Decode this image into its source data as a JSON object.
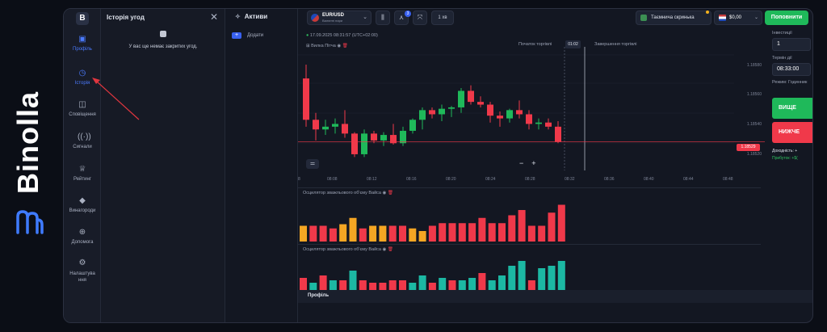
{
  "brand": {
    "name": "Binolla"
  },
  "nav": {
    "items": [
      {
        "label": "Профіль",
        "icon": "briefcase-icon"
      },
      {
        "label": "Історія",
        "icon": "history-icon"
      },
      {
        "label": "Сповіщення",
        "icon": "notification-icon"
      },
      {
        "label": "Сигнали",
        "icon": "signal-icon"
      },
      {
        "label": "Рейтинг",
        "icon": "trophy-icon"
      },
      {
        "label": "Винагороди",
        "icon": "diamond-icon"
      },
      {
        "label": "Допомога",
        "icon": "help-globe-icon"
      },
      {
        "label": "Налаштування",
        "icon": "gear-icon"
      }
    ]
  },
  "history": {
    "title": "Історія угод",
    "empty": "У вас ще немає закритих угод."
  },
  "assets": {
    "title": "Активи",
    "add": "Додати"
  },
  "topbar": {
    "pair": "EUR/USD",
    "pair_sub": "Валютні пари",
    "indicator_badge": "3",
    "timeframe": "1 хв",
    "secret": "Таємнича скринька",
    "balance": "$0,00",
    "deposit": "Поповнити"
  },
  "chart": {
    "datetime": "17.09.2025 08:31:57 (UTC+02:00)",
    "indicator": "Вилка Пітча",
    "start_label": "Початок торгівлі",
    "end_label": "Завершення торгівлі",
    "time_chip": "01:02",
    "current_price": "1.18529",
    "price_ticks": [
      "1.18580",
      "1.18560",
      "1.18540",
      "1.18520"
    ],
    "time_ticks": [
      "08:08",
      "08:12",
      "08:16",
      "08:20",
      "08:24",
      "08:28",
      "08:32",
      "08:36",
      "08:40",
      "08:44",
      "08:48"
    ],
    "first_tick": "8",
    "panel1_title": "Осцилятор зважльового об'єму Вайса",
    "panel2_title": "Осцилятор зважльового об'єму Вайса"
  },
  "trade": {
    "investment_label": "Інвестиції",
    "investment_value": "1",
    "term_label": "Термін дії",
    "term_value": "08:33:00",
    "mode_label": "Режим: Годинник",
    "up_label": "ВИЩЕ",
    "down_label": "НИЖЧЕ",
    "income_label": "Доходність: +",
    "profit_label": "Прибуток: +$("
  },
  "profile_bar": "Профіль",
  "chart_data": {
    "type": "candlestick",
    "candles": [
      {
        "o": 1.18575,
        "h": 1.18585,
        "l": 1.1854,
        "c": 1.18545
      },
      {
        "o": 1.18545,
        "h": 1.1855,
        "l": 1.1853,
        "c": 1.18538
      },
      {
        "o": 1.18538,
        "h": 1.18545,
        "l": 1.18534,
        "c": 1.1854
      },
      {
        "o": 1.1854,
        "h": 1.18546,
        "l": 1.18535,
        "c": 1.18542
      },
      {
        "o": 1.18542,
        "h": 1.18552,
        "l": 1.18532,
        "c": 1.18535
      },
      {
        "o": 1.18535,
        "h": 1.18536,
        "l": 1.18518,
        "c": 1.1852
      },
      {
        "o": 1.1852,
        "h": 1.18538,
        "l": 1.18518,
        "c": 1.18535
      },
      {
        "o": 1.18535,
        "h": 1.18537,
        "l": 1.18528,
        "c": 1.1853
      },
      {
        "o": 1.1853,
        "h": 1.18536,
        "l": 1.18526,
        "c": 1.18534
      },
      {
        "o": 1.18534,
        "h": 1.18542,
        "l": 1.18527,
        "c": 1.18528
      },
      {
        "o": 1.18528,
        "h": 1.1854,
        "l": 1.18526,
        "c": 1.18537
      },
      {
        "o": 1.18537,
        "h": 1.18546,
        "l": 1.18535,
        "c": 1.18545
      },
      {
        "o": 1.18545,
        "h": 1.18554,
        "l": 1.18538,
        "c": 1.18552
      },
      {
        "o": 1.18552,
        "h": 1.18554,
        "l": 1.18546,
        "c": 1.18549
      },
      {
        "o": 1.18549,
        "h": 1.18556,
        "l": 1.18544,
        "c": 1.18553
      },
      {
        "o": 1.18553,
        "h": 1.18555,
        "l": 1.18547,
        "c": 1.18554
      },
      {
        "o": 1.18554,
        "h": 1.18568,
        "l": 1.1855,
        "c": 1.18566
      },
      {
        "o": 1.18566,
        "h": 1.1857,
        "l": 1.18556,
        "c": 1.18558
      },
      {
        "o": 1.18558,
        "h": 1.18562,
        "l": 1.18554,
        "c": 1.18556
      },
      {
        "o": 1.18556,
        "h": 1.18558,
        "l": 1.18543,
        "c": 1.18548
      },
      {
        "o": 1.18548,
        "h": 1.18551,
        "l": 1.1854,
        "c": 1.18546
      },
      {
        "o": 1.18546,
        "h": 1.18553,
        "l": 1.18543,
        "c": 1.18552
      },
      {
        "o": 1.18552,
        "h": 1.18559,
        "l": 1.18546,
        "c": 1.18549
      },
      {
        "o": 1.18549,
        "h": 1.18552,
        "l": 1.18538,
        "c": 1.18542
      },
      {
        "o": 1.18542,
        "h": 1.18546,
        "l": 1.18538,
        "c": 1.18543
      },
      {
        "o": 1.18543,
        "h": 1.18546,
        "l": 1.18538,
        "c": 1.1854
      },
      {
        "o": 1.1854,
        "h": 1.18544,
        "l": 1.18528,
        "c": 1.18529
      }
    ],
    "volume1": {
      "colors": [
        "#f5a623",
        "#f0394a",
        "#f0394a",
        "#f0394a",
        "#f5a623",
        "#f5a623",
        "#f0394a",
        "#f5a623",
        "#f5a623",
        "#f0394a",
        "#f0394a",
        "#f5a623",
        "#f5a623",
        "#f0394a",
        "#f0394a",
        "#f0394a",
        "#f0394a",
        "#f0394a",
        "#f0394a",
        "#f0394a",
        "#f0394a",
        "#f0394a",
        "#f0394a",
        "#f0394a",
        "#f0394a",
        "#f0394a",
        "#f0394a"
      ],
      "values": [
        30,
        30,
        30,
        25,
        33,
        45,
        25,
        30,
        30,
        30,
        30,
        25,
        20,
        30,
        35,
        35,
        35,
        35,
        45,
        35,
        35,
        50,
        60,
        30,
        30,
        55,
        70
      ]
    },
    "volume2": {
      "colors": [
        "#f0394a",
        "#1cb8a3",
        "#f0394a",
        "#1cb8a3",
        "#f0394a",
        "#1cb8a3",
        "#f0394a",
        "#f0394a",
        "#f0394a",
        "#f0394a",
        "#f0394a",
        "#1cb8a3",
        "#1cb8a3",
        "#f0394a",
        "#1cb8a3",
        "#f0394a",
        "#1cb8a3",
        "#1cb8a3",
        "#f0394a",
        "#1cb8a3",
        "#1cb8a3",
        "#1cb8a3",
        "#1cb8a3",
        "#f0394a",
        "#1cb8a3",
        "#1cb8a3",
        "#1cb8a3"
      ],
      "values": [
        35,
        25,
        40,
        30,
        30,
        50,
        30,
        25,
        25,
        30,
        30,
        25,
        40,
        25,
        35,
        30,
        30,
        35,
        45,
        30,
        40,
        60,
        70,
        30,
        55,
        60,
        70
      ]
    }
  }
}
